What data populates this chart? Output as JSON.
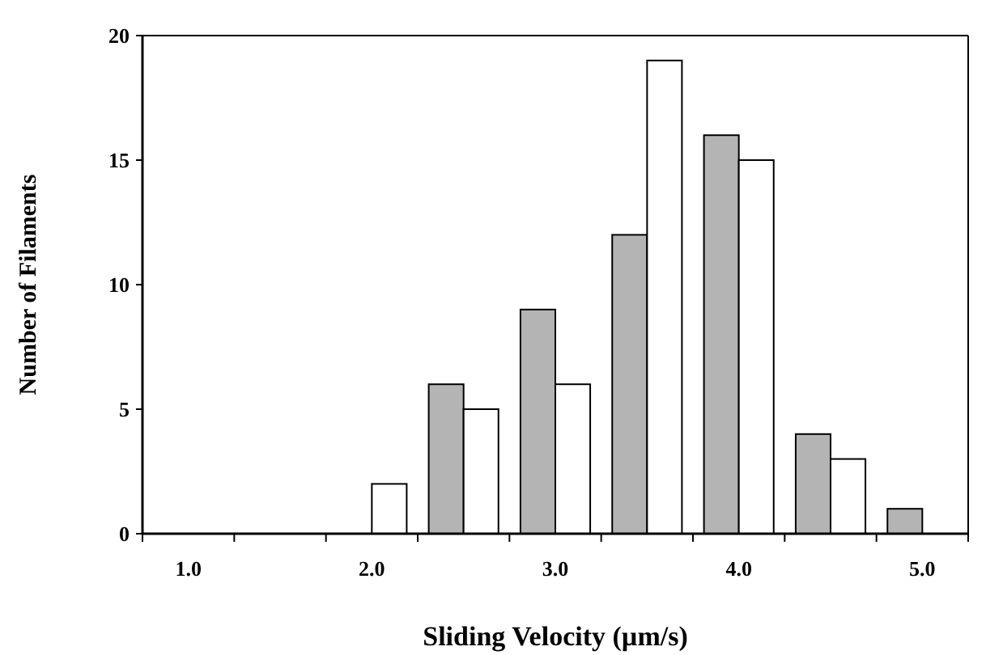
{
  "chart_data": {
    "type": "bar",
    "xlabel": "Sliding Velocity (µm/s)",
    "ylabel": "Number of Filaments",
    "categories": [
      "1.0",
      null,
      "2.0",
      null,
      "3.0",
      null,
      "4.0",
      null,
      "5.0"
    ],
    "series": [
      {
        "color": "#b4b4b4",
        "values": [
          0,
          0,
          0,
          6,
          9,
          12,
          16,
          4,
          1
        ]
      },
      {
        "color": "#ffffff",
        "values": [
          0,
          0,
          2,
          5,
          6,
          19,
          15,
          3,
          0
        ]
      }
    ],
    "ylim": [
      0,
      20
    ],
    "yticks": [
      0,
      5,
      10,
      15,
      20
    ],
    "grid": false
  }
}
